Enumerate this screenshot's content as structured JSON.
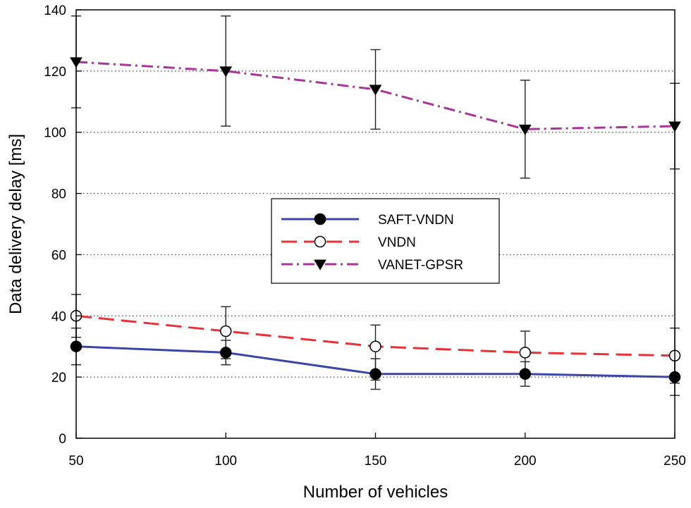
{
  "chart_data": {
    "type": "line",
    "title": "",
    "xlabel": "Number of vehicles",
    "ylabel": "Data delivery delay [ms]",
    "x": [
      50,
      100,
      150,
      200,
      250
    ],
    "xlim": [
      50,
      250
    ],
    "ylim": [
      0,
      140
    ],
    "xticks": [
      50,
      100,
      150,
      200,
      250
    ],
    "yticks": [
      0,
      20,
      40,
      60,
      80,
      100,
      120,
      140
    ],
    "grid_y_dotted": [
      20,
      40,
      60,
      80,
      100,
      120
    ],
    "legend_position": "center",
    "series": [
      {
        "name": "SAFT-VNDN",
        "color": "#3a47a8",
        "line_style": "solid",
        "marker": "filled-circle",
        "values": [
          30,
          28,
          21,
          21,
          20
        ],
        "err_low": [
          24,
          24,
          16,
          17,
          14
        ],
        "err_high": [
          36,
          32,
          26,
          25,
          26
        ]
      },
      {
        "name": "VNDN",
        "color": "#e8323a",
        "line_style": "dashed",
        "marker": "open-circle",
        "values": [
          40,
          35,
          30,
          28,
          27
        ],
        "err_low": [
          33,
          26,
          19,
          22,
          18
        ],
        "err_high": [
          47,
          43,
          37,
          35,
          36
        ]
      },
      {
        "name": "VANET-GPSR",
        "color": "#a8359a",
        "line_style": "dashdot",
        "marker": "filled-triangle-down",
        "values": [
          123,
          120,
          114,
          101,
          102
        ],
        "err_low": [
          108,
          102,
          101,
          85,
          88
        ],
        "err_high": [
          138,
          138,
          127,
          117,
          116
        ]
      }
    ]
  }
}
